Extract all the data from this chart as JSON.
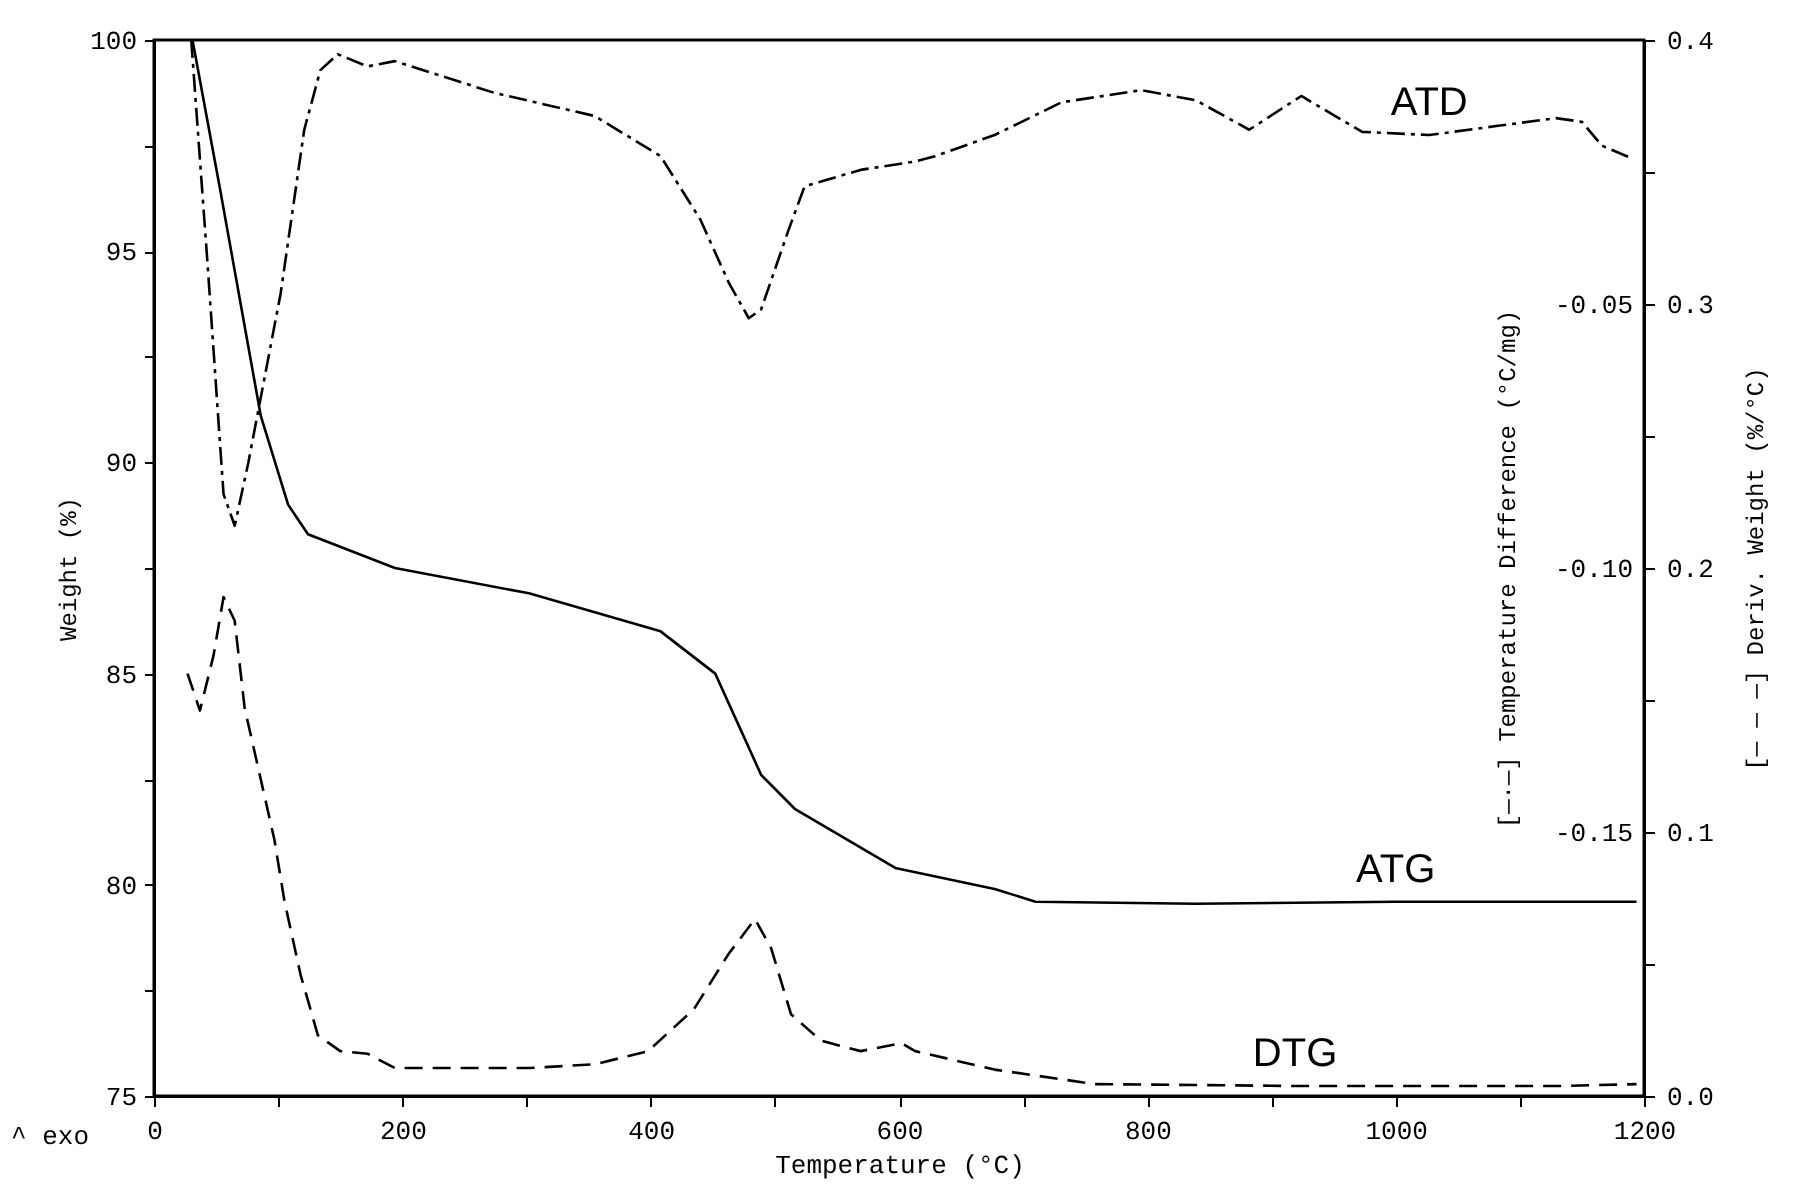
{
  "chart_data": {
    "type": "line",
    "xlabel": "Temperature (°C)",
    "ylabel": "Weight (%)",
    "y2label": "[—·—] Temperature Difference (°C/mg)",
    "y3label": "[— — —] Deriv. Weight (%/°C)",
    "xlim": [
      0,
      1200
    ],
    "xticks": [
      0,
      {
        "value": 100,
        "label": null
      },
      200,
      {
        "value": 300,
        "label": null
      },
      400,
      {
        "value": 500,
        "label": null
      },
      600,
      {
        "value": 700,
        "label": null
      },
      800,
      {
        "value": 900,
        "label": null
      },
      1000,
      {
        "value": 1100,
        "label": null
      },
      1200
    ],
    "ylim": [
      75,
      100
    ],
    "yticks": [
      75,
      {
        "value": 77.5,
        "label": null
      },
      80,
      {
        "value": 82.5,
        "label": null
      },
      85,
      {
        "value": 87.5,
        "label": null
      },
      90,
      {
        "value": 92.5,
        "label": null
      },
      95,
      {
        "value": 97.5,
        "label": null
      },
      100
    ],
    "y2lim": [
      -0.2,
      0
    ],
    "y2ticks": [
      {
        "value": -0.05,
        "label": "-0.05"
      },
      {
        "value": -0.1,
        "label": "-0.10"
      },
      {
        "value": -0.15,
        "label": "-0.15"
      }
    ],
    "y3lim": [
      0,
      0.4
    ],
    "y3ticks": [
      {
        "value": 0,
        "label": "0.0"
      },
      {
        "value": 0.05,
        "label": null
      },
      0.1,
      {
        "value": 0.15,
        "label": null
      },
      0.2,
      {
        "value": 0.25,
        "label": null
      },
      0.3,
      {
        "value": 0.35,
        "label": null
      },
      0.4
    ],
    "grid": false,
    "marker": "none",
    "annotations": [
      "^ exo"
    ],
    "series": [
      {
        "name": "ATD",
        "color": "#000000",
        "axis": "y2",
        "line_style": "dashdot",
        "x": [
          30,
          43,
          56,
          65,
          76,
          102,
          121,
          134,
          148,
          172,
          194,
          274,
          355,
          408,
          440,
          463,
          479,
          489,
          511,
          524,
          569,
          613,
          629,
          677,
          731,
          795,
          839,
          882,
          924,
          973,
          1027,
          1081,
          1129,
          1150,
          1166,
          1189
        ],
        "values": [
          0,
          -0.042,
          -0.086,
          -0.092,
          -0.08,
          -0.048,
          -0.017,
          -0.0057,
          -0.0027,
          -0.005,
          -0.004,
          -0.01,
          -0.0144,
          -0.022,
          -0.034,
          -0.046,
          -0.0527,
          -0.051,
          -0.036,
          -0.0277,
          -0.0246,
          -0.023,
          -0.022,
          -0.018,
          -0.0118,
          -0.0095,
          -0.0114,
          -0.017,
          -0.0106,
          -0.0174,
          -0.018,
          -0.0163,
          -0.0148,
          -0.0155,
          -0.02,
          -0.0223
        ]
      },
      {
        "name": "ATG",
        "color": "#000000",
        "axis": "y",
        "line_style": "solid",
        "x": [
          31,
          53,
          86,
          108,
          124,
          194,
          302,
          408,
          452,
          489,
          516,
          597,
          677,
          710,
          839,
          1000,
          1194
        ],
        "values": [
          100,
          96.5,
          91.1,
          89.0,
          88.3,
          87.5,
          86.9,
          86.0,
          85.0,
          82.6,
          81.8,
          80.4,
          79.9,
          79.6,
          79.55,
          79.6,
          79.6
        ]
      },
      {
        "name": "DTG",
        "color": "#000000",
        "axis": "y3",
        "line_style": "dashed",
        "x": [
          27,
          37,
          48,
          56,
          65,
          73,
          85,
          97,
          105,
          118,
          132,
          150,
          172,
          194,
          302,
          355,
          398,
          435,
          463,
          484,
          497,
          513,
          537,
          569,
          602,
          613,
          677,
          758,
          919,
          1134,
          1194
        ],
        "values": [
          0.16,
          0.146,
          0.167,
          0.189,
          0.18,
          0.147,
          0.122,
          0.097,
          0.074,
          0.046,
          0.023,
          0.017,
          0.016,
          0.0106,
          0.0106,
          0.012,
          0.017,
          0.033,
          0.054,
          0.067,
          0.056,
          0.031,
          0.021,
          0.017,
          0.02,
          0.017,
          0.01,
          0.0045,
          0.0038,
          0.0038,
          0.0045
        ]
      }
    ]
  }
}
